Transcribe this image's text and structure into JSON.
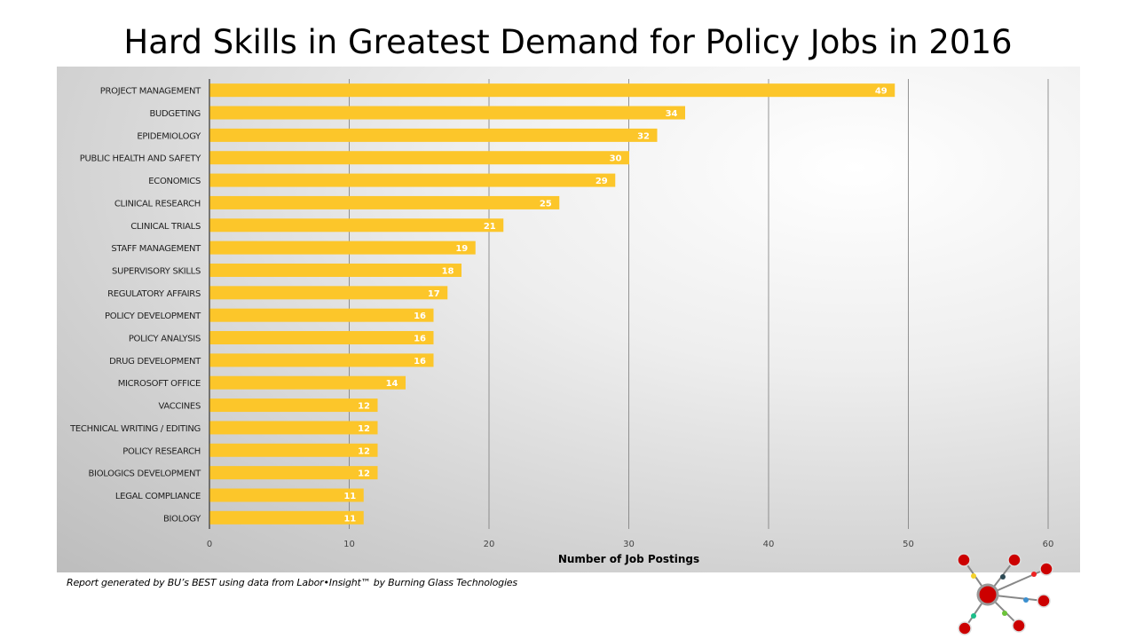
{
  "chart_data": {
    "type": "bar",
    "orientation": "horizontal",
    "title": "Hard Skills in Greatest Demand for Policy Jobs in 2016",
    "xlabel": "Number of Job Postings",
    "ylabel": "",
    "xlim": [
      0,
      60
    ],
    "xticks": [
      0,
      10,
      20,
      30,
      40,
      50,
      60
    ],
    "grid": true,
    "bar_color": "#FCC62A",
    "categories": [
      "PROJECT MANAGEMENT",
      "BUDGETING",
      "EPIDEMIOLOGY",
      "PUBLIC HEALTH AND SAFETY",
      "ECONOMICS",
      "CLINICAL RESEARCH",
      "CLINICAL TRIALS",
      "STAFF MANAGEMENT",
      "SUPERVISORY SKILLS",
      "REGULATORY AFFAIRS",
      "POLICY DEVELOPMENT",
      "POLICY ANALYSIS",
      "DRUG DEVELOPMENT",
      "MICROSOFT OFFICE",
      "VACCINES",
      "TECHNICAL WRITING / EDITING",
      "POLICY RESEARCH",
      "BIOLOGICS DEVELOPMENT",
      "LEGAL COMPLIANCE",
      "BIOLOGY"
    ],
    "values": [
      49,
      34,
      32,
      30,
      29,
      25,
      21,
      19,
      18,
      17,
      16,
      16,
      16,
      14,
      12,
      12,
      12,
      12,
      11,
      11
    ]
  },
  "footnote": "Report generated by BU’s BEST using data from Labor•Insight™ by Burning Glass Technologies"
}
